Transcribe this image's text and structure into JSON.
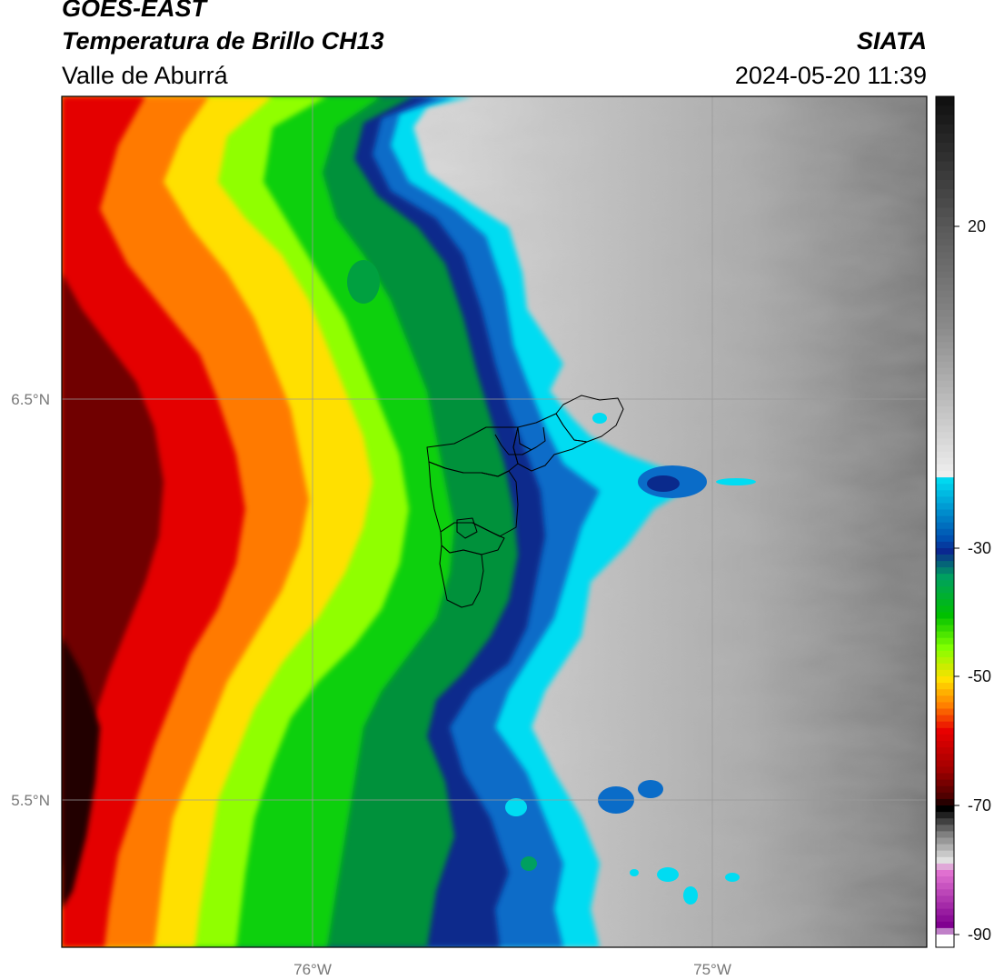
{
  "header": {
    "satellite": "GOES-EAST",
    "product": "Temperatura de Brillo CH13",
    "region": "Valle de Aburrá",
    "agency": "SIATA",
    "datetime": "2024-05-20 11:39"
  },
  "map": {
    "latitude_ticks": [
      {
        "value": 6.5,
        "label": "6.5°N"
      },
      {
        "value": 5.5,
        "label": "5.5°N"
      }
    ],
    "longitude_ticks": [
      {
        "value": -76.0,
        "label": "76°W"
      },
      {
        "value": -75.0,
        "label": "75°W"
      }
    ],
    "grid": true,
    "layers": [
      "brightness-temperature-field",
      "municipality-boundaries"
    ]
  },
  "colorbar": {
    "ticks": [
      {
        "value": 20,
        "label": "20"
      },
      {
        "value": -30,
        "label": "-30"
      },
      {
        "value": -50,
        "label": "-50"
      },
      {
        "value": -70,
        "label": "-70"
      },
      {
        "value": -90,
        "label": "-90"
      }
    ],
    "colors": {
      "warm_top": "#111111",
      "warm_mid": "#8a8a8a",
      "warm_low": "#eeeeee",
      "cyan": "#00d8f0",
      "dark_blue": "#0a2890",
      "green": "#00c000",
      "lime": "#80ff00",
      "yellow": "#ffe000",
      "orange": "#ff8000",
      "red": "#e80000",
      "dark_red": "#500000",
      "black": "#000000",
      "magenta": "#e070d0",
      "purple": "#800090"
    }
  }
}
